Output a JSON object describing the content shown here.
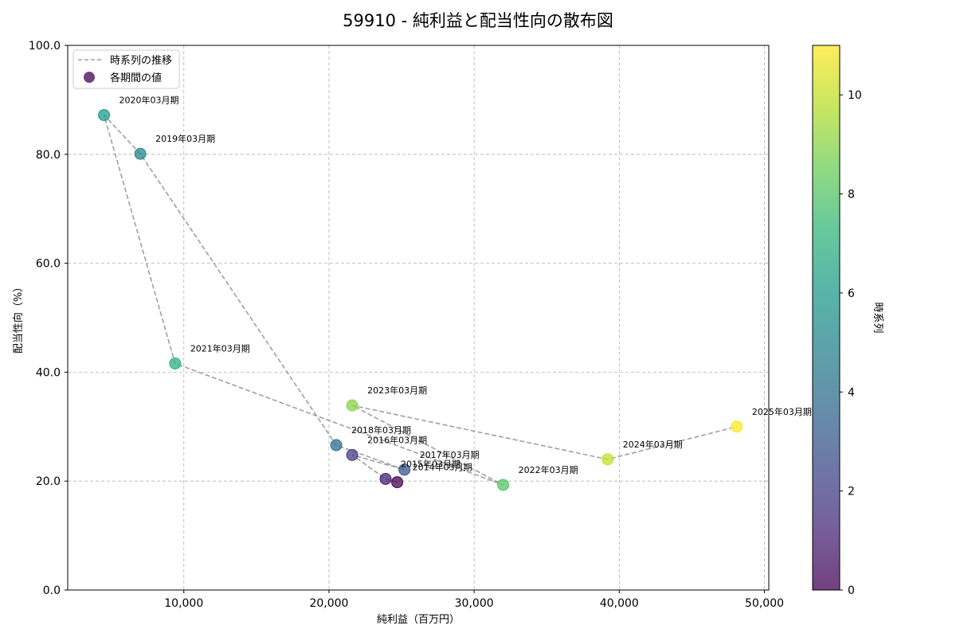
{
  "chart_data": {
    "type": "scatter",
    "title": "59910 - 純利益と配当性向の散布図",
    "xlabel": "純利益（百万円）",
    "ylabel": "配当性向（%）",
    "xlim": [
      2000,
      50300
    ],
    "ylim": [
      0,
      100
    ],
    "xticks": [
      10000,
      20000,
      30000,
      40000,
      50000
    ],
    "xtick_labels": [
      "10,000",
      "20,000",
      "30,000",
      "40,000",
      "50,000"
    ],
    "yticks": [
      0,
      20,
      40,
      60,
      80,
      100
    ],
    "ytick_labels": [
      "0.0",
      "20.0",
      "40.0",
      "60.0",
      "80.0",
      "100.0"
    ],
    "grid": true,
    "legend": {
      "placement": "top-left",
      "line_label": "時系列の推移",
      "marker_label": "各期間の値"
    },
    "colorbar": {
      "label": "時系列",
      "range": [
        0,
        11
      ],
      "ticks": [
        0,
        2,
        4,
        6,
        8,
        10
      ],
      "tick_labels": [
        "0",
        "2",
        "4",
        "6",
        "8",
        "10"
      ]
    },
    "points": [
      {
        "label": "2014年03月期",
        "x": 24700,
        "y": 19.8,
        "t": 0
      },
      {
        "label": "2015年03月期",
        "x": 23900,
        "y": 20.4,
        "t": 1
      },
      {
        "label": "2016年03月期",
        "x": 21600,
        "y": 24.8,
        "t": 2
      },
      {
        "label": "2017年03月期",
        "x": 25200,
        "y": 22.1,
        "t": 3
      },
      {
        "label": "2018年03月期",
        "x": 20500,
        "y": 26.6,
        "t": 4
      },
      {
        "label": "2019年03月期",
        "x": 7000,
        "y": 80.1,
        "t": 5
      },
      {
        "label": "2020年03月期",
        "x": 4500,
        "y": 87.2,
        "t": 6
      },
      {
        "label": "2021年03月期",
        "x": 9400,
        "y": 41.6,
        "t": 7
      },
      {
        "label": "2022年03月期",
        "x": 32000,
        "y": 19.3,
        "t": 8
      },
      {
        "label": "2023年03月期",
        "x": 21600,
        "y": 33.9,
        "t": 9
      },
      {
        "label": "2024年03月期",
        "x": 39200,
        "y": 24.0,
        "t": 10
      },
      {
        "label": "2025年03月期",
        "x": 48100,
        "y": 30.0,
        "t": 11
      }
    ],
    "colors": {
      "line": "#a0a0a0",
      "viridis": [
        "#440154",
        "#482878",
        "#3e4989",
        "#31688e",
        "#26828e",
        "#1f9e89",
        "#35b779",
        "#6ece58",
        "#b5de2b",
        "#fde725"
      ]
    }
  }
}
